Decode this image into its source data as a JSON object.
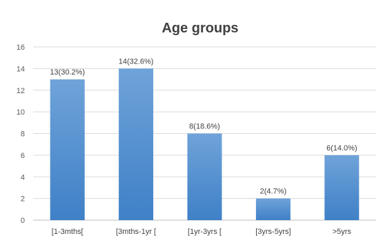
{
  "chart_data": {
    "type": "bar",
    "title": "Age groups",
    "xlabel": "",
    "ylabel": "",
    "categories": [
      "[1-3mths[",
      "[3mths-1yr [",
      "[1yr-3yrs [",
      "[3yrs-5yrs]",
      ">5yrs"
    ],
    "values": [
      13,
      14,
      8,
      2,
      6
    ],
    "data_labels": [
      "13(30.2%)",
      "14(32.6%)",
      "8(18.6%)",
      "2(4.7%)",
      "6(14.0%)"
    ],
    "ylim": [
      0,
      16
    ],
    "yticks": [
      0,
      2,
      4,
      6,
      8,
      10,
      12,
      14,
      16
    ],
    "grid": true,
    "legend": "none",
    "colors": {
      "bar_top": "#6fa3d9",
      "bar_bottom": "#3f80c7",
      "grid": "#d9d9d9",
      "axis": "#bfbfbf"
    }
  }
}
